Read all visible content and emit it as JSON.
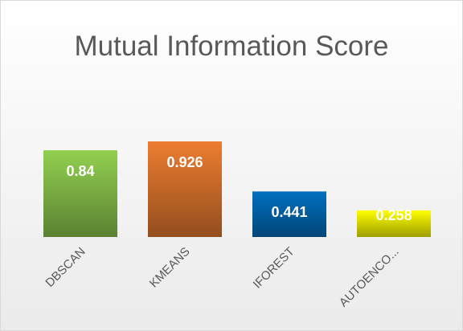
{
  "chart_data": {
    "type": "bar",
    "title": "Mutual Information Score",
    "categories": [
      "DBSCAN",
      "KMEANS",
      "IFOREST",
      "AUTOENCO..."
    ],
    "values": [
      0.84,
      0.926,
      0.441,
      0.258
    ],
    "colors": [
      "#92d050",
      "#ed7d31",
      "#0070c0",
      "#ffff00"
    ]
  }
}
